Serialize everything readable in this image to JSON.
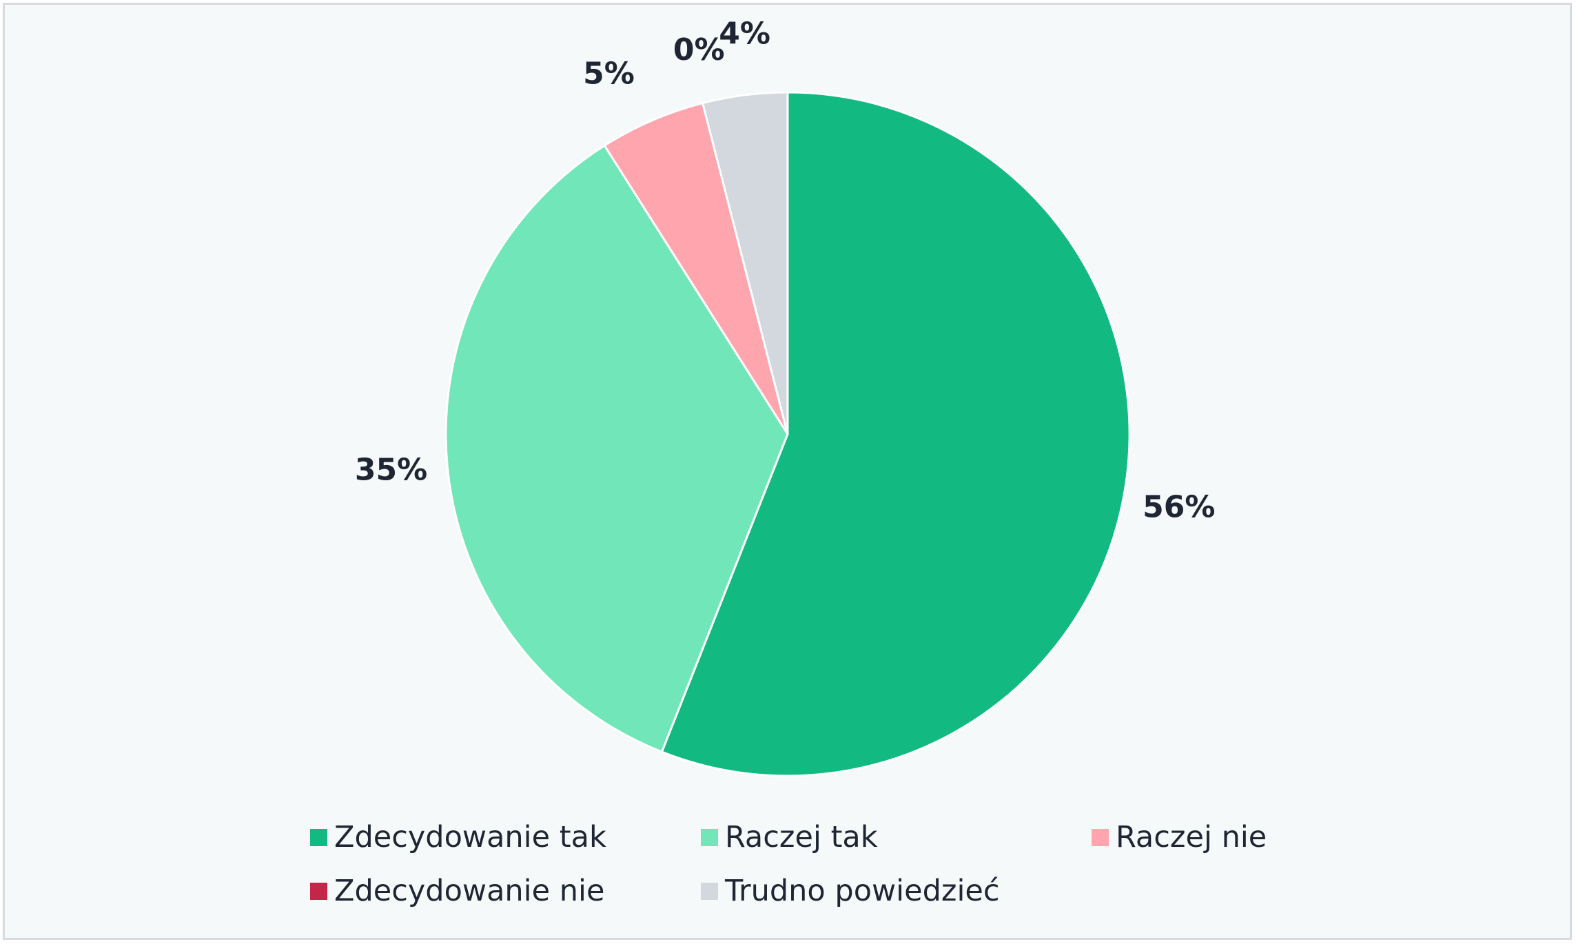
{
  "chart_data": {
    "type": "pie",
    "title": "",
    "slices": [
      {
        "name": "Zdecydowanie tak",
        "value": 56,
        "label": "56%",
        "color": "#12ba82"
      },
      {
        "name": "Raczej tak",
        "value": 35,
        "label": "35%",
        "color": "#71e6b9"
      },
      {
        "name": "Raczej nie",
        "value": 5,
        "label": "5%",
        "color": "#fea5ae"
      },
      {
        "name": "Zdecydowanie nie",
        "value": 0,
        "label": "0%",
        "color": "#c4264a"
      },
      {
        "name": "Trudno powiedzieć",
        "value": 4,
        "label": "4%",
        "color": "#d3d7de"
      }
    ],
    "legend": {
      "placement": "bottom",
      "items": [
        {
          "label": "Zdecydowanie tak",
          "color": "#12ba82"
        },
        {
          "label": "Raczej tak",
          "color": "#71e6b9"
        },
        {
          "label": "Raczej nie",
          "color": "#fea5ae"
        },
        {
          "label": "Zdecydowanie nie",
          "color": "#c4264a"
        },
        {
          "label": "Trudno powiedzieć",
          "color": "#d3d7de"
        }
      ]
    },
    "start_angle_deg": 0,
    "direction": "clockwise"
  }
}
